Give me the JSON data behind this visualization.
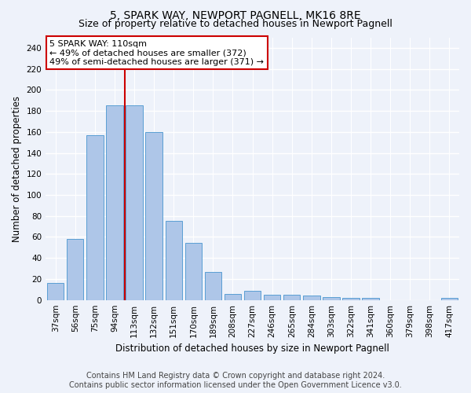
{
  "title": "5, SPARK WAY, NEWPORT PAGNELL, MK16 8RE",
  "subtitle": "Size of property relative to detached houses in Newport Pagnell",
  "xlabel": "Distribution of detached houses by size in Newport Pagnell",
  "ylabel": "Number of detached properties",
  "categories": [
    "37sqm",
    "56sqm",
    "75sqm",
    "94sqm",
    "113sqm",
    "132sqm",
    "151sqm",
    "170sqm",
    "189sqm",
    "208sqm",
    "227sqm",
    "246sqm",
    "265sqm",
    "284sqm",
    "303sqm",
    "322sqm",
    "341sqm",
    "360sqm",
    "379sqm",
    "398sqm",
    "417sqm"
  ],
  "values": [
    16,
    58,
    157,
    185,
    185,
    160,
    75,
    54,
    27,
    6,
    9,
    5,
    5,
    4,
    3,
    2,
    2,
    0,
    0,
    0,
    2
  ],
  "bar_color": "#aec6e8",
  "bar_edge_color": "#5a9fd4",
  "red_line_x": 3.5,
  "annotation_line1": "5 SPARK WAY: 110sqm",
  "annotation_line2": "← 49% of detached houses are smaller (372)",
  "annotation_line3": "49% of semi-detached houses are larger (371) →",
  "annotation_box_color": "#ffffff",
  "annotation_box_edge": "#cc0000",
  "ylim": [
    0,
    250
  ],
  "yticks": [
    0,
    20,
    40,
    60,
    80,
    100,
    120,
    140,
    160,
    180,
    200,
    220,
    240
  ],
  "footer_line1": "Contains HM Land Registry data © Crown copyright and database right 2024.",
  "footer_line2": "Contains public sector information licensed under the Open Government Licence v3.0.",
  "bg_color": "#eef2fa",
  "grid_color": "#ffffff",
  "title_fontsize": 10,
  "subtitle_fontsize": 9,
  "axis_label_fontsize": 8.5,
  "tick_fontsize": 7.5,
  "footer_fontsize": 7
}
